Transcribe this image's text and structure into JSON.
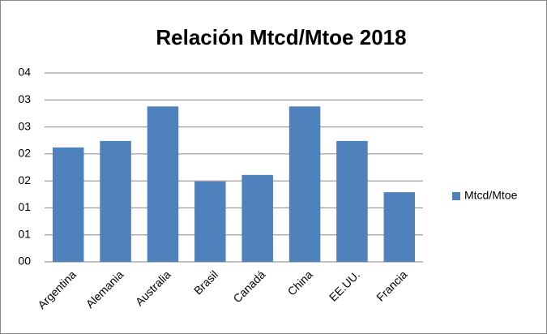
{
  "chart_data": {
    "type": "bar",
    "title": "Relación Mtcd/Mtoe 2018",
    "categories": [
      "Argentina",
      "Alemania",
      "Australia",
      "Brasil",
      "Canadá",
      "China",
      "EE.UU.",
      "Francia"
    ],
    "series": [
      {
        "name": "Mtcd/Mtoe",
        "color": "#4f81bd",
        "values": [
          2.12,
          2.24,
          2.88,
          1.49,
          1.61,
          2.88,
          2.24,
          1.29
        ]
      }
    ],
    "ylim": [
      0,
      3.5
    ],
    "yticks": [
      {
        "value": 0,
        "label": "00"
      },
      {
        "value": 0.5,
        "label": "01"
      },
      {
        "value": 1,
        "label": "01"
      },
      {
        "value": 1.5,
        "label": "02"
      },
      {
        "value": 2,
        "label": "02"
      },
      {
        "value": 2.5,
        "label": "03"
      },
      {
        "value": 3,
        "label": "03"
      },
      {
        "value": 3.5,
        "label": "04"
      }
    ],
    "grid": true,
    "legend": "right"
  }
}
